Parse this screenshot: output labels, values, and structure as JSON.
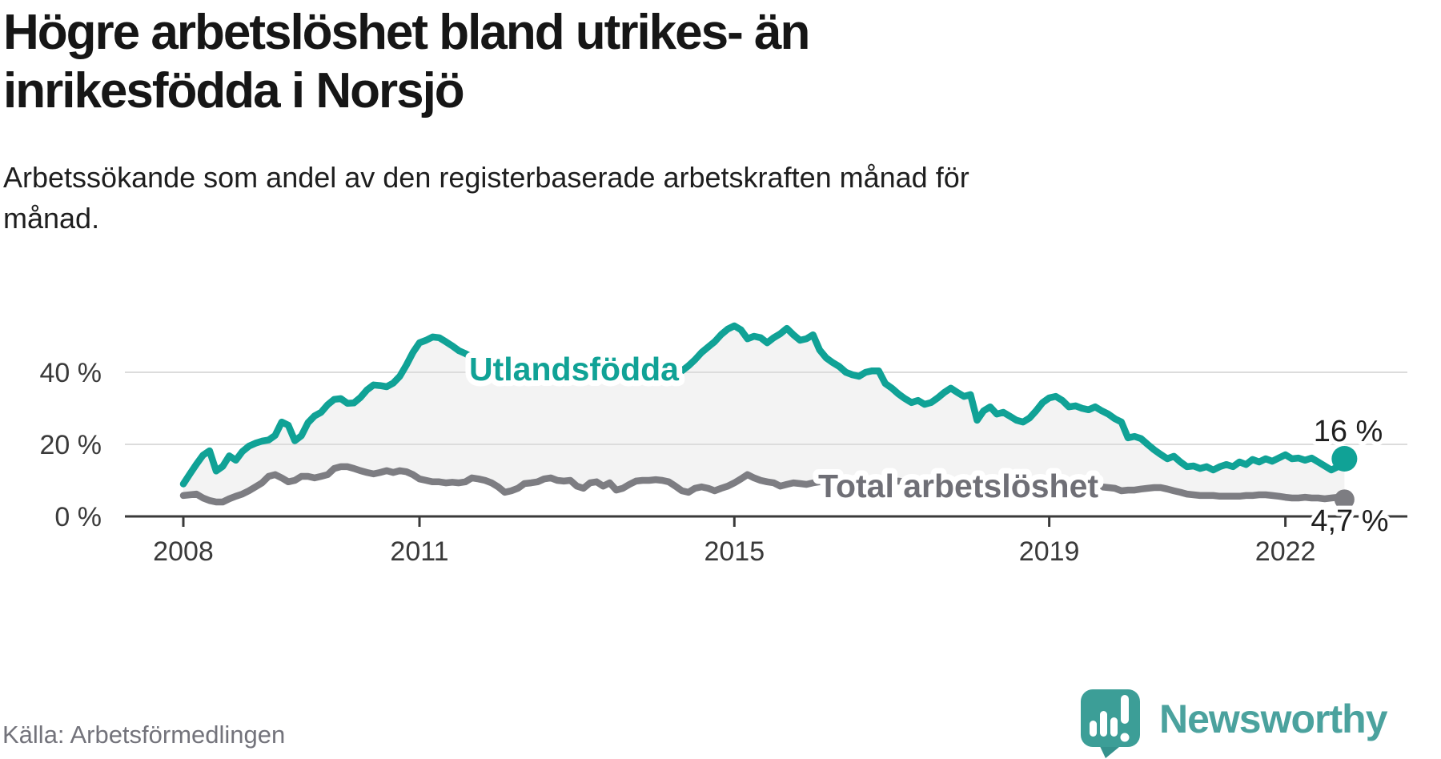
{
  "header": {
    "title_line1": "Högre arbetslöshet bland utrikes- än",
    "title_line2": "inrikesfödda i Norsjö",
    "subtitle_line1": "Arbetssökande som andel av den registerbaserade arbetskraften månad för",
    "subtitle_line2": "månad."
  },
  "footer": {
    "source": "Källa: Arbetsförmedlingen",
    "brand": "Newsworthy"
  },
  "colors": {
    "accent_teal": "#10a296",
    "line_gray": "#7d7d82",
    "gray_label": "#6f6f76",
    "fill_between": "#f3f3f3",
    "gridline": "#dcdcdc",
    "axis": "#3a3a3a",
    "logo_bubble": "#3c9e97",
    "logo_text": "#4ba29e"
  },
  "chart_data": {
    "type": "line",
    "title": "Högre arbetslöshet bland utrikes- än inrikesfödda i Norsjö",
    "xlabel": "",
    "ylabel": "%",
    "x_start_year": 2008,
    "frequency": "monthly",
    "x_ticks": [
      2008,
      2011,
      2015,
      2019,
      2022
    ],
    "y_ticks": [
      {
        "v": 0,
        "label": "0 %"
      },
      {
        "v": 20,
        "label": "20 %"
      },
      {
        "v": 40,
        "label": "40 %"
      }
    ],
    "ylim": [
      0,
      56
    ],
    "grid": true,
    "legend_position": "inline-labels",
    "area_fill_between_series": true,
    "series": [
      {
        "name": "Utlandsfödda",
        "color": "#10a296",
        "end_label": "16 %",
        "values": [
          9.0,
          11.8,
          14.5,
          17.0,
          18.2,
          12.6,
          13.9,
          16.8,
          15.6,
          18.0,
          19.5,
          20.3,
          20.9,
          21.2,
          22.5,
          26.2,
          25.3,
          21.0,
          22.4,
          26.0,
          27.9,
          28.9,
          31.0,
          32.5,
          32.7,
          31.4,
          31.5,
          33.0,
          35.1,
          36.5,
          36.3,
          36.0,
          37.0,
          38.9,
          42.0,
          45.5,
          48.2,
          48.9,
          49.8,
          49.6,
          48.5,
          47.3,
          46.0,
          45.2,
          44.2,
          42.8,
          41.5,
          40.3,
          39.2,
          38.4,
          38.8,
          38.0,
          38.6,
          39.2,
          39.6,
          39.4,
          38.8,
          38.4,
          39.0,
          39.6,
          39.2,
          38.8,
          39.4,
          39.6,
          39.2,
          38.8,
          39.2,
          39.8,
          40.2,
          39.8,
          39.4,
          39.8,
          40.0,
          39.6,
          39.2,
          39.8,
          40.4,
          41.8,
          43.5,
          45.5,
          47.0,
          48.5,
          50.5,
          52.0,
          52.9,
          51.8,
          49.3,
          50.0,
          49.6,
          48.2,
          49.6,
          50.7,
          52.2,
          50.4,
          48.9,
          49.3,
          50.4,
          46.2,
          44.0,
          42.7,
          41.6,
          40.0,
          39.3,
          38.9,
          40.0,
          40.4,
          40.4,
          36.9,
          35.6,
          34.0,
          32.7,
          31.6,
          32.2,
          31.1,
          31.6,
          32.9,
          34.4,
          35.6,
          34.4,
          33.3,
          33.8,
          26.7,
          29.3,
          30.4,
          28.4,
          28.9,
          27.8,
          26.7,
          26.2,
          27.3,
          29.3,
          31.6,
          32.9,
          33.3,
          32.2,
          30.4,
          30.7,
          30.0,
          29.6,
          30.4,
          29.3,
          28.4,
          27.1,
          26.2,
          21.8,
          22.2,
          21.6,
          20.0,
          18.5,
          17.2,
          16.0,
          16.7,
          15.1,
          13.8,
          14.0,
          13.3,
          13.8,
          12.9,
          13.8,
          14.4,
          13.8,
          15.1,
          14.4,
          15.8,
          15.1,
          16.0,
          15.3,
          16.2,
          17.1,
          16.0,
          16.2,
          15.6,
          16.2,
          15.1,
          14.0,
          12.9,
          13.8,
          16.0
        ]
      },
      {
        "name": "Total arbetslöshet",
        "color": "#7d7d82",
        "end_label": "4,7 %",
        "values": [
          5.8,
          6.0,
          6.2,
          5.1,
          4.4,
          4.0,
          4.0,
          4.9,
          5.6,
          6.2,
          7.1,
          8.2,
          9.3,
          11.1,
          11.6,
          10.7,
          9.6,
          10.0,
          11.1,
          11.1,
          10.7,
          11.1,
          11.6,
          13.3,
          13.8,
          13.8,
          13.3,
          12.7,
          12.2,
          11.8,
          12.2,
          12.7,
          12.2,
          12.7,
          12.4,
          11.6,
          10.4,
          10.0,
          9.6,
          9.6,
          9.3,
          9.5,
          9.3,
          9.6,
          10.7,
          10.4,
          10.0,
          9.3,
          8.2,
          6.7,
          7.1,
          7.8,
          9.1,
          9.3,
          9.6,
          10.4,
          10.7,
          10.0,
          9.8,
          10.0,
          8.4,
          7.8,
          9.3,
          9.6,
          8.4,
          9.3,
          7.3,
          7.8,
          8.9,
          9.8,
          10.0,
          10.0,
          10.2,
          10.0,
          9.6,
          8.4,
          7.1,
          6.7,
          7.8,
          8.2,
          7.8,
          7.1,
          7.8,
          8.4,
          9.3,
          10.4,
          11.6,
          10.7,
          10.0,
          9.6,
          9.3,
          8.4,
          8.9,
          9.3,
          9.1,
          8.9,
          9.3,
          9.6,
          9.3,
          8.9,
          8.7,
          8.9,
          9.3,
          9.6,
          9.3,
          8.9,
          9.1,
          9.3,
          9.6,
          9.8,
          9.6,
          9.3,
          8.9,
          8.7,
          8.4,
          8.7,
          8.9,
          9.3,
          8.9,
          8.7,
          8.4,
          8.0,
          8.2,
          8.4,
          8.7,
          8.4,
          8.0,
          7.8,
          8.0,
          8.2,
          8.4,
          8.7,
          8.9,
          9.1,
          8.9,
          8.4,
          8.2,
          8.0,
          7.8,
          8.0,
          8.2,
          8.0,
          7.8,
          7.1,
          7.3,
          7.3,
          7.6,
          7.8,
          8.0,
          8.0,
          7.6,
          7.1,
          6.7,
          6.2,
          6.0,
          5.8,
          5.8,
          5.8,
          5.6,
          5.6,
          5.6,
          5.6,
          5.8,
          5.8,
          6.0,
          6.0,
          5.8,
          5.6,
          5.3,
          5.1,
          5.1,
          5.3,
          5.1,
          5.1,
          4.9,
          5.1,
          5.3,
          4.7
        ]
      }
    ]
  }
}
